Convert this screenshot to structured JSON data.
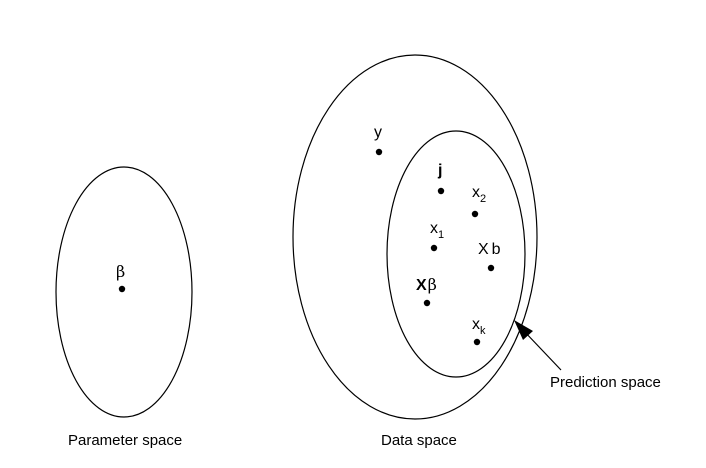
{
  "regions": {
    "parameter_space": {
      "caption": "Parameter space",
      "point_label": "β"
    },
    "data_space": {
      "caption": "Data space"
    },
    "prediction_space": {
      "caption": "Prediction space"
    }
  },
  "points": {
    "y": {
      "label": "y"
    },
    "j": {
      "label": "j"
    },
    "x2": {
      "base": "x",
      "sub": "2"
    },
    "x1": {
      "base": "x",
      "sub": "1"
    },
    "Xb": {
      "base": "X",
      "suffix": "b"
    },
    "Xbeta": {
      "base": "X",
      "suffix": "β"
    },
    "xk": {
      "base": "x",
      "sub": "k"
    }
  },
  "colors": {
    "ink": "#000000",
    "background": "#ffffff"
  }
}
